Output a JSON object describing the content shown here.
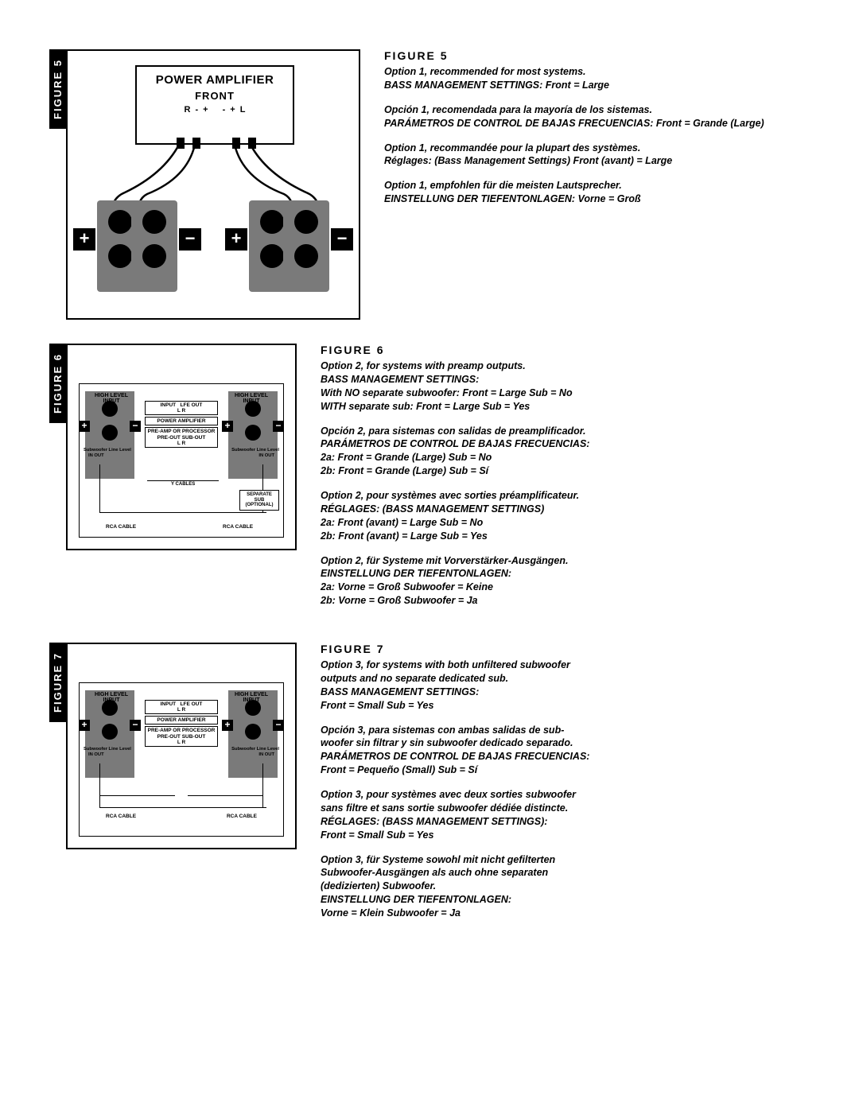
{
  "figure5": {
    "tab_label": "FIGURE 5",
    "title": "FIGURE 5",
    "diagram": {
      "amp_title": "POWER AMPLIFIER",
      "amp_front": "FRONT",
      "amp_term_R": "R",
      "amp_term_L": "L",
      "amp_minus": "-",
      "amp_plus": "+",
      "plus_sym": "+",
      "minus_sym": "−",
      "colors": {
        "box": "#000000",
        "speaker": "#7a7a7a",
        "bg": "#ffffff"
      }
    },
    "blocks": [
      {
        "lines": [
          "Option 1, recommended for most systems.",
          "BASS MANAGEMENT SETTINGS: Front = Large"
        ]
      },
      {
        "lines": [
          "Opción 1, recomendada para la mayoría de los sistemas.",
          "PARÁMETROS DE CONTROL DE BAJAS FRECUENCIAS: Front = Grande (Large)"
        ]
      },
      {
        "lines": [
          "Option 1, recommandée pour la plupart des systèmes.",
          "Réglages: (Bass Management Settings) Front (avant) = Large"
        ]
      },
      {
        "lines": [
          "Option 1, empfohlen für die meisten Lautsprecher.",
          "EINSTELLUNG DER TIEFENTONLAGEN: Vorne = Groß"
        ]
      }
    ]
  },
  "figure6": {
    "tab_label": "FIGURE 6",
    "title": "FIGURE 6",
    "diagram": {
      "high_level_input": "HIGH LEVEL\nINPUT",
      "sub_line_level": "Subwoofer Line Level",
      "in_out": "IN    OUT",
      "input": "INPUT",
      "lfe_out": "LFE OUT",
      "l_r": "L   R",
      "power_amplifier": "POWER AMPLIFIER",
      "preamp": "PRE-AMP OR PROCESSOR",
      "preout_subout": "PRE-OUT    SUB-OUT",
      "y_cables": "Y CABLES",
      "rca_cable": "RCA CABLE",
      "separate_sub": "SEPARATE SUB\n(OPTIONAL)",
      "plus": "+",
      "minus": "−",
      "dot": "○"
    },
    "blocks": [
      {
        "lines": [
          "Option 2, for systems with preamp outputs.",
          "BASS MANAGEMENT SETTINGS:",
          "With NO separate subwoofer: Front = Large   Sub = No",
          "WITH separate sub: Front = Large   Sub = Yes"
        ]
      },
      {
        "lines": [
          "Opción 2, para sistemas con salidas de preamplificador.",
          "PARÁMETROS DE CONTROL DE BAJAS FRECUENCIAS:",
          "2a: Front = Grande (Large)   Sub = No",
          "2b: Front = Grande (Large)   Sub = Sí"
        ]
      },
      {
        "lines": [
          "Option 2, pour systèmes avec sorties préamplificateur.",
          "RÉGLAGES: (BASS MANAGEMENT SETTINGS)",
          "2a: Front (avant) = Large   Sub = No",
          "2b: Front (avant) = Large   Sub = Yes"
        ]
      },
      {
        "lines": [
          "Option 2, für Systeme mit Vorverstärker-Ausgängen.",
          "EINSTELLUNG DER TIEFENTONLAGEN:",
          "2a: Vorne = Groß    Subwoofer = Keine",
          "2b: Vorne = Groß    Subwoofer = Ja"
        ]
      }
    ]
  },
  "figure7": {
    "tab_label": "FIGURE 7",
    "title": "FIGURE 7",
    "diagram": {
      "high_level_input": "HIGH LEVEL\nINPUT",
      "sub_line_level": "Subwoofer Line Level",
      "in_out": "IN    OUT",
      "input": "INPUT",
      "lfe_out": "LFE OUT",
      "l_r": "L   R",
      "power_amplifier": "POWER AMPLIFIER",
      "preamp": "PRE-AMP OR PROCESSOR",
      "preout_subout": "PRE-OUT    SUB-OUT",
      "rca_cable": "RCA CABLE",
      "plus": "+",
      "minus": "−",
      "dot": "○"
    },
    "blocks": [
      {
        "lines": [
          "Option 3, for systems with both unfiltered subwoofer",
          "outputs and no separate dedicated sub.",
          "BASS MANAGEMENT SETTINGS:",
          "Front = Small   Sub = Yes"
        ]
      },
      {
        "lines": [
          "Opción 3, para sistemas con ambas salidas de sub-",
          "woofer sin filtrar y sin subwoofer dedicado separado.",
          "PARÁMETROS DE CONTROL DE BAJAS FRECUENCIAS:",
          "Front = Pequeño (Small)   Sub = Sí"
        ]
      },
      {
        "lines": [
          "Option 3, pour systèmes avec deux sorties subwoofer",
          "sans filtre et sans sortie subwoofer dédiée distincte.",
          "RÉGLAGES: (BASS MANAGEMENT SETTINGS):",
          "Front = Small   Sub = Yes"
        ]
      },
      {
        "lines": [
          "Option 3, für Systeme sowohl mit nicht gefilterten",
          "Subwoofer-Ausgängen als auch ohne separaten",
          "(dedizierten) Subwoofer.",
          "EINSTELLUNG DER TIEFENTONLAGEN:",
          "Vorne = Klein   Subwoofer = Ja"
        ]
      }
    ]
  }
}
